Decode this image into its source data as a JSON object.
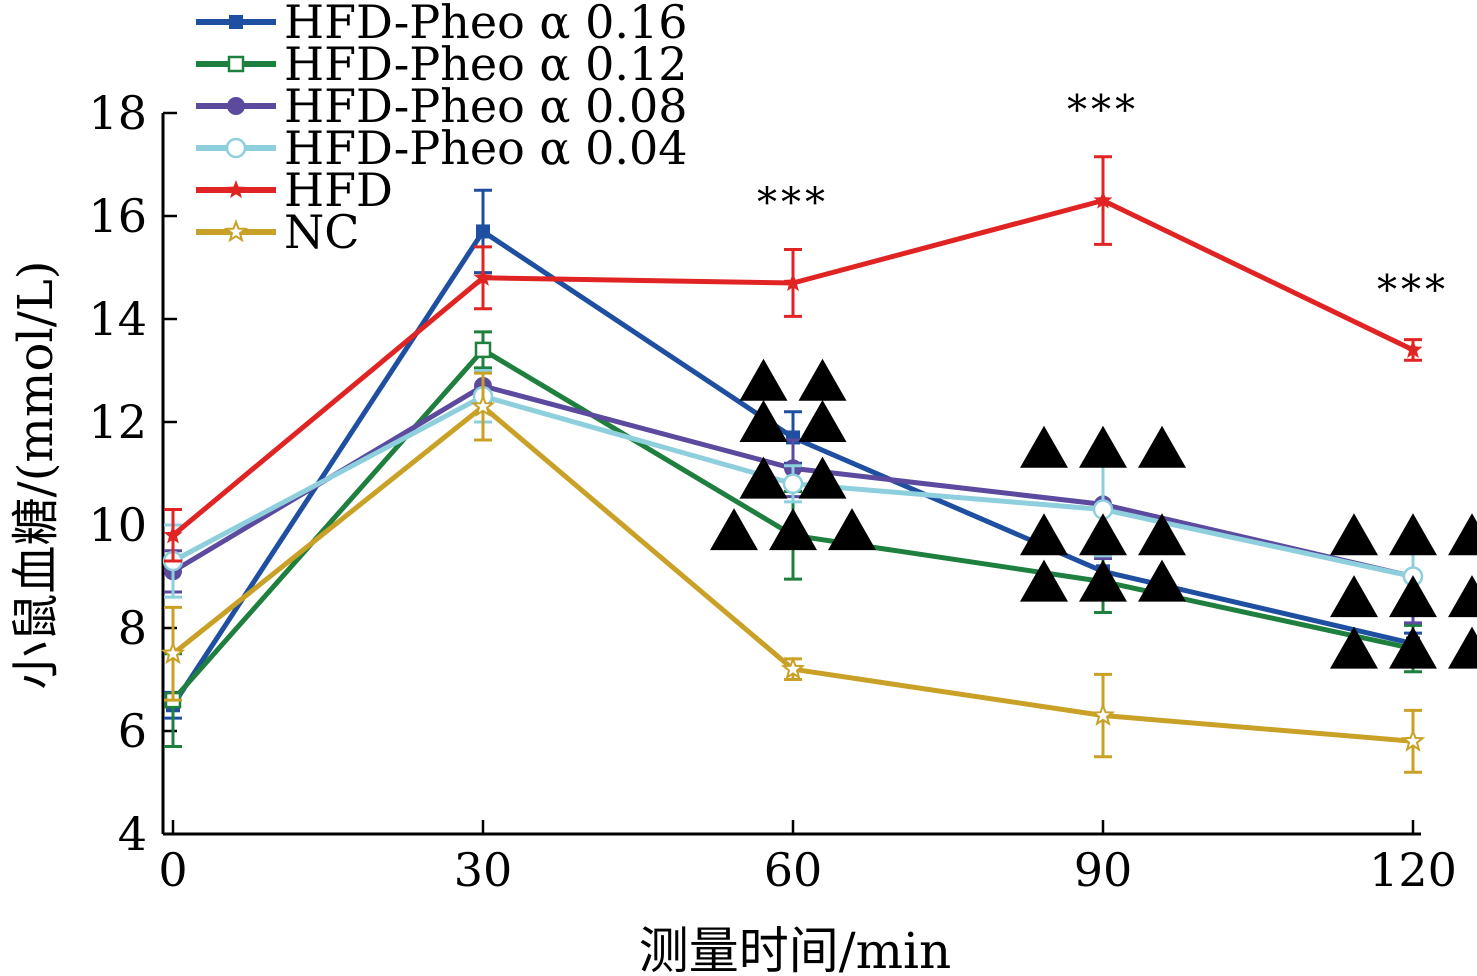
{
  "chart_data": {
    "type": "line",
    "xlabel": "测量时间/min",
    "ylabel": "小鼠血糖/(mmol/L)",
    "x": [
      0,
      30,
      60,
      90,
      120
    ],
    "xlim": [
      0,
      120
    ],
    "ylim": [
      4,
      18
    ],
    "xticks": [
      "0",
      "30",
      "60",
      "90",
      "120"
    ],
    "yticks": [
      "4",
      "6",
      "8",
      "10",
      "12",
      "14",
      "16",
      "18"
    ],
    "grid": false,
    "legend_position": "top-left",
    "series": [
      {
        "name": "HFD-Pheo α 0.16",
        "color": "#1f4fa0",
        "marker": "square-filled",
        "values": [
          6.5,
          15.7,
          11.7,
          9.1,
          7.7
        ],
        "errors": [
          0.25,
          0.8,
          0.5,
          0.45,
          0.2
        ]
      },
      {
        "name": "HFD-Pheo α 0.12",
        "color": "#1e7f3e",
        "marker": "square-open",
        "values": [
          6.6,
          13.4,
          9.8,
          8.9,
          7.6
        ],
        "errors": [
          0.9,
          0.35,
          0.85,
          0.6,
          0.45
        ]
      },
      {
        "name": "HFD-Pheo α 0.08",
        "color": "#5b4a9e",
        "marker": "circle-filled",
        "values": [
          9.1,
          12.7,
          11.1,
          10.4,
          9.0
        ],
        "errors": [
          0.4,
          0.3,
          0.55,
          1.05,
          0.9
        ]
      },
      {
        "name": "HFD-Pheo α 0.04",
        "color": "#8ecfdd",
        "marker": "circle-open",
        "values": [
          9.3,
          12.5,
          10.8,
          10.3,
          9.0
        ],
        "errors": [
          0.7,
          0.5,
          0.35,
          0.9,
          0.45
        ]
      },
      {
        "name": "HFD",
        "color": "#e02424",
        "marker": "star-filled",
        "values": [
          9.8,
          14.8,
          14.7,
          16.3,
          13.4
        ],
        "errors": [
          0.5,
          0.6,
          0.65,
          0.85,
          0.2
        ]
      },
      {
        "name": "NC",
        "color": "#c9a126",
        "marker": "star-open",
        "values": [
          7.5,
          12.3,
          7.2,
          6.3,
          5.8
        ],
        "errors": [
          0.9,
          0.65,
          0.2,
          0.8,
          0.6
        ]
      }
    ],
    "annotations": [
      {
        "text": "***",
        "x": 60,
        "y": 16.0
      },
      {
        "text": "***",
        "x": 90,
        "y": 17.8
      },
      {
        "text": "***",
        "x": 120,
        "y": 14.3
      }
    ],
    "triangle_marks": [
      {
        "x": 60,
        "rows": [
          {
            "y": 12.8,
            "count": 2
          },
          {
            "y": 12.0,
            "count": 2
          },
          {
            "y": 10.9,
            "count": 2
          },
          {
            "y": 9.9,
            "count": 3
          }
        ]
      },
      {
        "x": 90,
        "rows": [
          {
            "y": 11.5,
            "count": 3
          },
          {
            "y": 9.8,
            "count": 3
          },
          {
            "y": 8.9,
            "count": 3
          }
        ]
      },
      {
        "x": 120,
        "rows": [
          {
            "y": 9.8,
            "count": 3
          },
          {
            "y": 8.6,
            "count": 3
          },
          {
            "y": 7.6,
            "count": 3
          }
        ]
      }
    ]
  }
}
